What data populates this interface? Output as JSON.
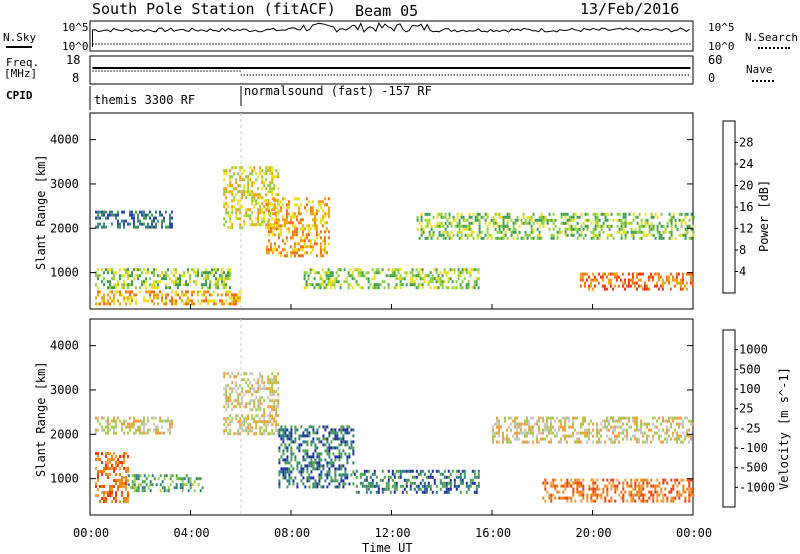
{
  "header": {
    "title": "South Pole Station (fitACF)",
    "beam": "Beam 05",
    "date": "13/Feb/2016"
  },
  "side_labels": {
    "nsky": "N.Sky",
    "freq_line1": "Freq.",
    "freq_line2": "[MHz]",
    "cpid": "CPID",
    "nsearch": "N.Search",
    "nave": "Nave"
  },
  "cpid_segments": [
    {
      "label": "themis 3300 RF",
      "start_hour": 0,
      "end_hour": 6
    },
    {
      "label": "normalsound (fast) -157 RF",
      "start_hour": 6,
      "end_hour": 24
    }
  ],
  "colors": {
    "power": [
      "#1a1aff",
      "#2a4aa8",
      "#3f7f88",
      "#3f9f4f",
      "#8fcf3f",
      "#e8e020",
      "#f0a010",
      "#f07010",
      "#f03810",
      "#ee1010"
    ],
    "velocity": [
      "#ee1010",
      "#f04010",
      "#f07f10",
      "#f0a040",
      "#c8c8c0",
      "#a8cc50",
      "#50a050",
      "#2f7f7f",
      "#2030a0"
    ]
  },
  "chart_data": [
    {
      "type": "line",
      "name": "noise-panel",
      "ylabel": "N.Sky",
      "yticks_left": [
        "10^5",
        "10^0"
      ],
      "yticks_right": [
        "10^5",
        "10^0"
      ],
      "right_label": "N.Search"
    },
    {
      "type": "line",
      "name": "frequency-panel",
      "ylabel": "Freq. [MHz]",
      "yticks_left": [
        18,
        8
      ],
      "yticks_right": [
        60,
        0
      ],
      "right_label": "Nave"
    },
    {
      "type": "heatmap",
      "name": "power-panel",
      "ylabel": "Slant Range [km]",
      "ylim": [
        180,
        4600
      ],
      "yticks": [
        1000,
        2000,
        3000,
        4000
      ],
      "xlim": [
        0,
        24
      ],
      "colorbar": {
        "label": "Power [dB]",
        "ticks": [
          4,
          8,
          12,
          16,
          20,
          24,
          28
        ]
      },
      "echo_bands": [
        {
          "t0": 0.2,
          "t1": 3.3,
          "r0": 2050,
          "r1": 2400,
          "level": 2
        },
        {
          "t0": 0.2,
          "t1": 5.6,
          "r0": 650,
          "r1": 1100,
          "level": 4
        },
        {
          "t0": 0.2,
          "t1": 6.0,
          "r0": 300,
          "r1": 600,
          "level": 6
        },
        {
          "t0": 5.3,
          "t1": 7.5,
          "r0": 2000,
          "r1": 3400,
          "level": 5
        },
        {
          "t0": 7.0,
          "t1": 9.5,
          "r0": 1400,
          "r1": 2700,
          "level": 6
        },
        {
          "t0": 8.5,
          "t1": 15.5,
          "r0": 650,
          "r1": 1100,
          "level": 4
        },
        {
          "t0": 13.0,
          "t1": 24.0,
          "r0": 1800,
          "r1": 2350,
          "level": 4
        },
        {
          "t0": 19.5,
          "t1": 24.0,
          "r0": 650,
          "r1": 1000,
          "level": 7
        }
      ]
    },
    {
      "type": "heatmap",
      "name": "velocity-panel",
      "ylabel": "Slant Range [km]",
      "xlabel": "Time UT",
      "ylim": [
        180,
        4600
      ],
      "yticks": [
        1000,
        2000,
        3000,
        4000
      ],
      "xlim": [
        0,
        24
      ],
      "xticks": [
        "00:00",
        "04:00",
        "08:00",
        "12:00",
        "16:00",
        "20:00",
        "00:00"
      ],
      "colorbar": {
        "label": "Velocity [m s^-1]",
        "ticks": [
          -1000,
          -500,
          -100,
          -25,
          25,
          100,
          500,
          1000
        ]
      },
      "echo_bands": [
        {
          "t0": 0.2,
          "t1": 3.3,
          "r0": 2050,
          "r1": 2400,
          "level": 4
        },
        {
          "t0": 0.2,
          "t1": 1.5,
          "r0": 500,
          "r1": 1600,
          "level": 2
        },
        {
          "t0": 1.5,
          "t1": 4.5,
          "r0": 700,
          "r1": 1100,
          "level": 6
        },
        {
          "t0": 5.3,
          "t1": 7.5,
          "r0": 2000,
          "r1": 3400,
          "level": 4
        },
        {
          "t0": 7.5,
          "t1": 10.5,
          "r0": 800,
          "r1": 2200,
          "level": 7
        },
        {
          "t0": 10.5,
          "t1": 15.5,
          "r0": 700,
          "r1": 1200,
          "level": 7
        },
        {
          "t0": 16.0,
          "t1": 24.0,
          "r0": 1800,
          "r1": 2400,
          "level": 4
        },
        {
          "t0": 18.0,
          "t1": 24.0,
          "r0": 500,
          "r1": 1000,
          "level": 2
        }
      ]
    }
  ]
}
